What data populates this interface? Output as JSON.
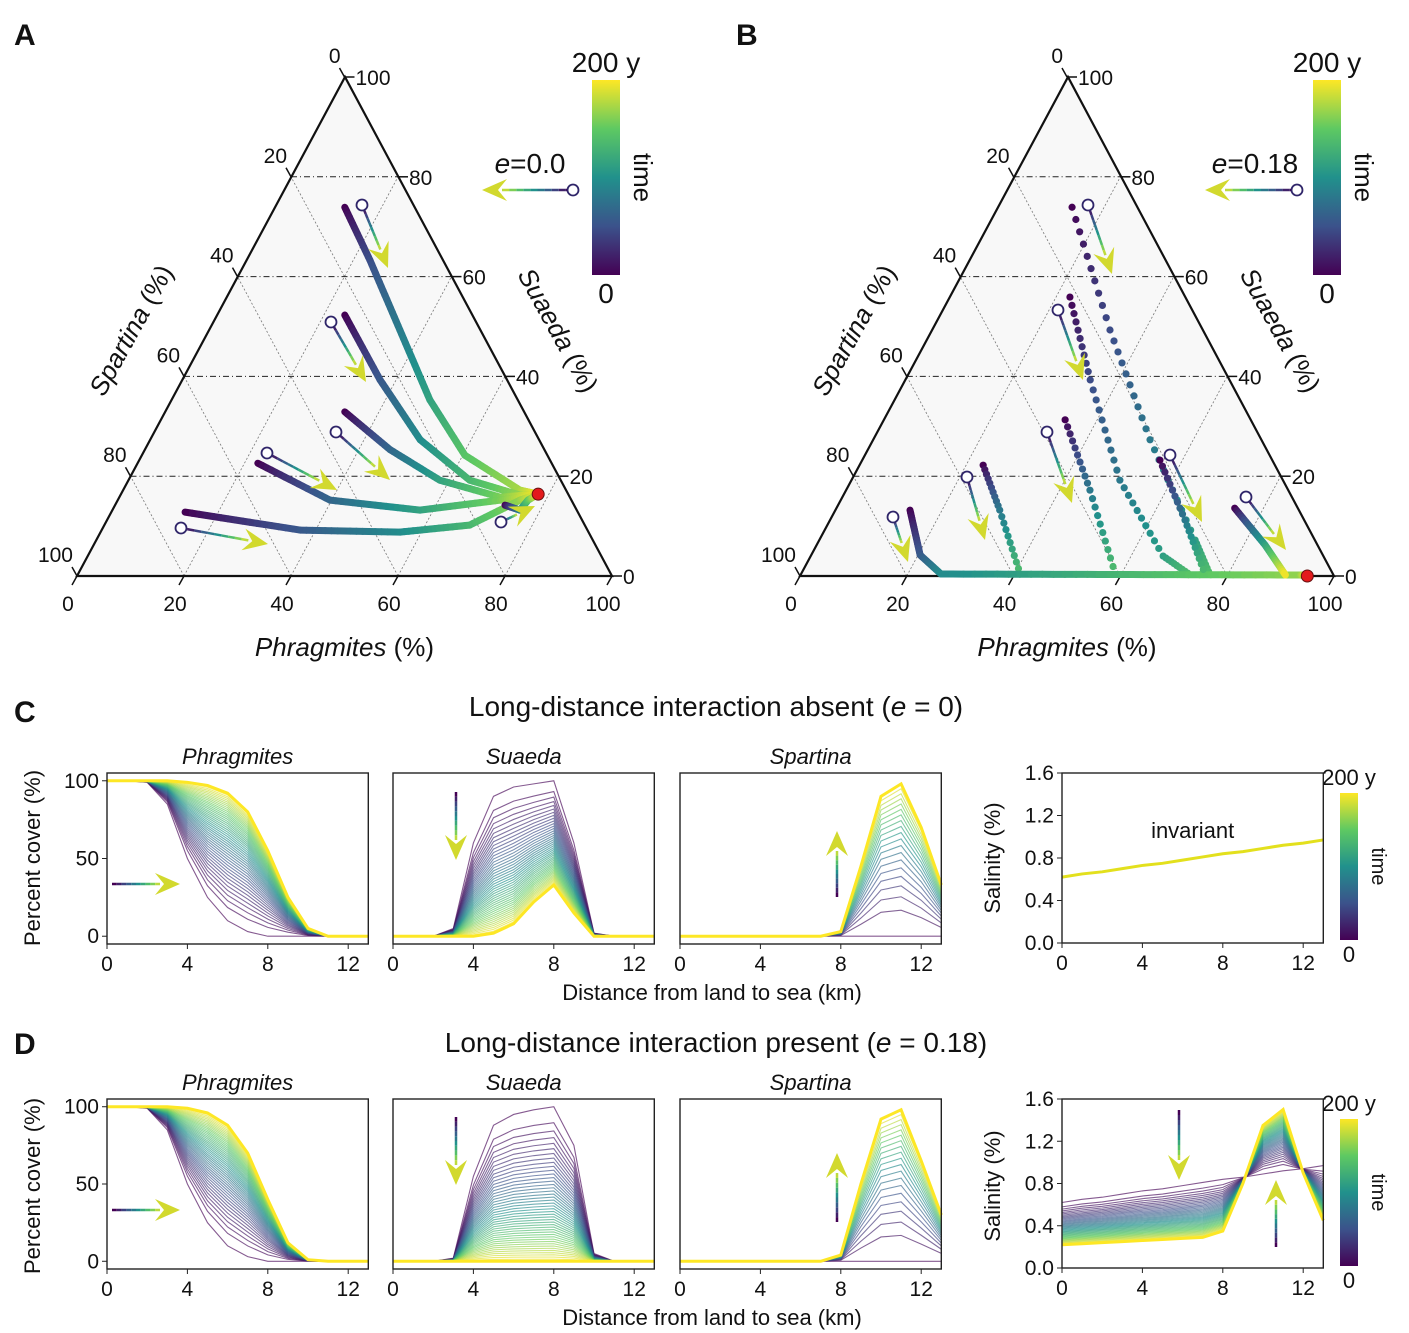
{
  "panel_labels": {
    "A": "A",
    "B": "B",
    "C": "C",
    "D": "D"
  },
  "rows": {
    "C": {
      "prefix": "Long-distance interaction absent (",
      "var": "e",
      "suffix": " = 0)"
    },
    "D": {
      "prefix": "Long-distance interaction present (",
      "var": "e",
      "suffix": " = 0.18)"
    }
  },
  "labels": {
    "percent_cover": "Percent cover (%)",
    "salinity": "Salinity (%)",
    "distance": "Distance from land to sea (km)",
    "invariant": "invariant",
    "unit": " (%)"
  },
  "colors": {
    "equilibrium": "#e31a1c",
    "arrow": "#d2d92e",
    "frame": "#111111"
  },
  "chart_data": [
    {
      "id": "A",
      "type": "scatter",
      "subtype": "ternary",
      "axes": {
        "bottom": "Phragmites",
        "right": "Suaeda",
        "left": "Spartina"
      },
      "ticks": [
        0,
        20,
        40,
        60,
        80,
        100
      ],
      "e_label": {
        "var": "e",
        "value": "=0.0"
      },
      "colorbar": {
        "top": "200 y",
        "bottom": "0",
        "label": "time"
      },
      "trajectories": [
        {
          "style": "solid",
          "points": [
            [
              13.1,
              73.9
            ],
            [
              23.1,
              63.3
            ],
            [
              35.7,
              49.3
            ],
            [
              48.3,
              35.3
            ],
            [
              60.4,
              24.2
            ],
            [
              74.2,
              17.2
            ],
            [
              78,
              16.4
            ]
          ]
        },
        {
          "style": "solid",
          "points": [
            [
              23.9,
              52.3
            ],
            [
              37,
              39.3
            ],
            [
              50.5,
              27.3
            ],
            [
              63.8,
              19.2
            ],
            [
              74.7,
              16.2
            ],
            [
              78,
              16.4
            ]
          ]
        },
        {
          "style": "solid",
          "points": [
            [
              33.6,
              32.9
            ],
            [
              45.9,
              25.3
            ],
            [
              58.2,
              19.2
            ],
            [
              71.2,
              15.8
            ],
            [
              78,
              16.4
            ]
          ]
        },
        {
          "style": "solid",
          "points": [
            [
              22.5,
              22.6
            ],
            [
              39.7,
              15.2
            ],
            [
              57.5,
              13.2
            ],
            [
              71.5,
              15.2
            ],
            [
              78,
              16.4
            ]
          ]
        },
        {
          "style": "solid",
          "points": [
            [
              13.8,
              12.8
            ],
            [
              37.1,
              9.2
            ],
            [
              56,
              8.8
            ],
            [
              68.3,
              10.2
            ],
            [
              75.2,
              15.2
            ],
            [
              78,
              16.4
            ]
          ]
        },
        {
          "style": "solid",
          "points": [
            [
              72.9,
              14.2
            ],
            [
              76.2,
              13.2
            ],
            [
              76.7,
              15.2
            ],
            [
              78,
              16.4
            ]
          ]
        }
      ],
      "equilibrium": [
        78,
        16.4
      ]
    },
    {
      "id": "B",
      "type": "scatter",
      "subtype": "ternary",
      "axes": {
        "bottom": "Phragmites",
        "right": "Suaeda",
        "left": "Spartina"
      },
      "ticks": [
        0,
        20,
        40,
        60,
        80,
        100
      ],
      "e_label": {
        "var": "e",
        "value": "=0.18"
      },
      "colorbar": {
        "top": "200 y",
        "bottom": "0",
        "label": "time"
      },
      "trajectories": [
        {
          "style": "dotted",
          "points": [
            [
              14,
              73.9
            ],
            [
              33.4,
              49.3
            ],
            [
              51.9,
              27.3
            ],
            [
              70.4,
              7.2
            ],
            [
              76.7,
              0.2
            ]
          ]
        },
        {
          "style": "dotted",
          "points": [
            [
              22.6,
              55.9
            ],
            [
              34.7,
              39.3
            ],
            [
              50.3,
              19.2
            ],
            [
              66,
              4
            ],
            [
              73,
              0.2
            ]
          ]
        },
        {
          "style": "dotted",
          "points": [
            [
              34,
              31.3
            ],
            [
              45.7,
              17.2
            ],
            [
              59,
              0.2
            ]
          ]
        },
        {
          "style": "dotted",
          "points": [
            [
              23.2,
              22.2
            ],
            [
              30.8,
              13.2
            ],
            [
              41.2,
              0.2
            ]
          ]
        },
        {
          "style": "solid",
          "points": [
            [
              14,
              13.2
            ],
            [
              20.4,
              4.2
            ],
            [
              26.2,
              0.4
            ],
            [
              60,
              0.3
            ],
            [
              93.6,
              0.2
            ],
            [
              95,
              0
            ]
          ]
        },
        {
          "style": "dotted",
          "points": [
            [
              55.8,
              23.2
            ],
            [
              66.5,
              11.2
            ],
            [
              75.8,
              0.2
            ]
          ]
        },
        {
          "style": "solid",
          "points": [
            [
              74.6,
              13.6
            ],
            [
              84,
              6.2
            ],
            [
              90.8,
              0.2
            ]
          ]
        }
      ],
      "equilibrium": [
        95,
        0
      ]
    },
    {
      "id": "C-phragmites",
      "row": "C",
      "type": "line",
      "title": "Phragmites",
      "xlim": [
        0,
        13
      ],
      "ylim": [
        -5,
        105
      ],
      "xticks": [
        0,
        4,
        8,
        12
      ],
      "yticks": [
        0,
        50,
        100
      ],
      "n_curves": 45,
      "x": [
        0,
        1,
        2,
        3,
        4,
        5,
        6,
        7,
        8,
        9,
        10,
        11,
        12,
        13
      ],
      "initial": [
        100,
        100,
        99,
        85,
        50,
        25,
        10,
        3,
        0,
        0,
        0,
        0,
        0,
        0
      ],
      "final": [
        100,
        100,
        100,
        100,
        99,
        97,
        92,
        80,
        55,
        25,
        5,
        0,
        0,
        0
      ]
    },
    {
      "id": "C-suaeda",
      "row": "C",
      "type": "line",
      "title": "Suaeda",
      "xlim": [
        0,
        13
      ],
      "ylim": [
        -5,
        105
      ],
      "xticks": [
        0,
        4,
        8,
        12
      ],
      "yticks": [],
      "n_curves": 45,
      "x": [
        0,
        1,
        2,
        3,
        4,
        5,
        6,
        7,
        8,
        9,
        10,
        11,
        12,
        13
      ],
      "initial": [
        0,
        0,
        0,
        5,
        60,
        90,
        96,
        98,
        100,
        60,
        2,
        0,
        0,
        0
      ],
      "final": [
        0,
        0,
        0,
        0,
        0,
        2,
        8,
        22,
        33,
        15,
        0,
        0,
        0,
        0
      ]
    },
    {
      "id": "C-spartina",
      "row": "C",
      "type": "line",
      "title": "Spartina",
      "xlim": [
        0,
        13
      ],
      "ylim": [
        -5,
        105
      ],
      "xticks": [
        0,
        4,
        8,
        12
      ],
      "yticks": [],
      "n_curves": 20,
      "x": [
        0,
        1,
        2,
        3,
        4,
        5,
        6,
        7,
        8,
        9,
        10,
        11,
        12,
        13
      ],
      "initial": [
        0,
        0,
        0,
        0,
        0,
        0,
        0,
        0,
        0,
        0,
        0,
        0,
        0,
        0
      ],
      "final": [
        0,
        0,
        0,
        0,
        0,
        0,
        0,
        0,
        3,
        45,
        90,
        98,
        70,
        33
      ]
    },
    {
      "id": "C-salinity",
      "row": "C",
      "type": "line",
      "title": "",
      "xlim": [
        0,
        13
      ],
      "ylim": [
        0,
        1.6
      ],
      "xticks": [
        0,
        4,
        8,
        12
      ],
      "yticks": [
        0.0,
        0.4,
        0.8,
        1.2,
        1.6
      ],
      "ytick_labels": [
        "0.0",
        "0.4",
        "0.8",
        "1.2",
        "1.6"
      ],
      "n_curves": 1,
      "x": [
        0,
        1,
        2,
        3,
        4,
        5,
        6,
        7,
        8,
        9,
        10,
        11,
        12,
        13
      ],
      "initial": [
        0.62,
        0.65,
        0.67,
        0.7,
        0.73,
        0.75,
        0.78,
        0.81,
        0.84,
        0.86,
        0.89,
        0.92,
        0.94,
        0.97
      ],
      "final": [
        0.62,
        0.65,
        0.67,
        0.7,
        0.73,
        0.75,
        0.78,
        0.81,
        0.84,
        0.86,
        0.89,
        0.92,
        0.94,
        0.97
      ],
      "annotation": "invariant",
      "colorbar": {
        "top": "200 y",
        "bottom": "0",
        "label": "time"
      }
    },
    {
      "id": "D-phragmites",
      "row": "D",
      "type": "line",
      "title": "Phragmites",
      "xlim": [
        0,
        13
      ],
      "ylim": [
        -5,
        105
      ],
      "xticks": [
        0,
        4,
        8,
        12
      ],
      "yticks": [
        0,
        50,
        100
      ],
      "n_curves": 45,
      "x": [
        0,
        1,
        2,
        3,
        4,
        5,
        6,
        7,
        8,
        9,
        10,
        11,
        12,
        13
      ],
      "initial": [
        100,
        100,
        99,
        85,
        50,
        25,
        10,
        3,
        0,
        0,
        0,
        0,
        0,
        0
      ],
      "final": [
        100,
        100,
        100,
        100,
        99,
        96,
        88,
        70,
        40,
        12,
        1,
        0,
        0,
        0
      ]
    },
    {
      "id": "D-suaeda",
      "row": "D",
      "type": "line",
      "title": "Suaeda",
      "xlim": [
        0,
        13
      ],
      "ylim": [
        -5,
        105
      ],
      "xticks": [
        0,
        4,
        8,
        12
      ],
      "yticks": [],
      "n_curves": 45,
      "x": [
        0,
        1,
        2,
        3,
        4,
        5,
        6,
        7,
        8,
        9,
        10,
        11,
        12,
        13
      ],
      "initial": [
        0,
        0,
        0,
        2,
        55,
        88,
        95,
        98,
        100,
        75,
        5,
        0,
        0,
        0
      ],
      "final": [
        0,
        0,
        0,
        0,
        0,
        0,
        0,
        0,
        0,
        0,
        0,
        0,
        0,
        0
      ]
    },
    {
      "id": "D-spartina",
      "row": "D",
      "type": "line",
      "title": "Spartina",
      "xlim": [
        0,
        13
      ],
      "ylim": [
        -5,
        105
      ],
      "xticks": [
        0,
        4,
        8,
        12
      ],
      "yticks": [],
      "n_curves": 20,
      "x": [
        0,
        1,
        2,
        3,
        4,
        5,
        6,
        7,
        8,
        9,
        10,
        11,
        12,
        13
      ],
      "initial": [
        0,
        0,
        0,
        0,
        0,
        0,
        0,
        0,
        0,
        0,
        0,
        0,
        0,
        0
      ],
      "final": [
        0,
        0,
        0,
        0,
        0,
        0,
        0,
        0,
        4,
        50,
        92,
        98,
        65,
        30
      ]
    },
    {
      "id": "D-salinity",
      "row": "D",
      "type": "line",
      "title": "",
      "xlim": [
        0,
        13
      ],
      "ylim": [
        0,
        1.6
      ],
      "xticks": [
        0,
        4,
        8,
        12
      ],
      "yticks": [
        0.0,
        0.4,
        0.8,
        1.2,
        1.6
      ],
      "ytick_labels": [
        "0.0",
        "0.4",
        "0.8",
        "1.2",
        "1.6"
      ],
      "n_curves": 45,
      "x": [
        0,
        1,
        2,
        3,
        4,
        5,
        6,
        7,
        8,
        9,
        10,
        11,
        12,
        13
      ],
      "initial": [
        0.62,
        0.65,
        0.67,
        0.7,
        0.73,
        0.75,
        0.78,
        0.81,
        0.84,
        0.86,
        0.89,
        0.92,
        0.94,
        0.97
      ],
      "final": [
        0.22,
        0.23,
        0.24,
        0.25,
        0.26,
        0.27,
        0.28,
        0.29,
        0.35,
        0.8,
        1.35,
        1.5,
        0.9,
        0.45
      ],
      "colorbar": {
        "top": "200 y",
        "bottom": "0",
        "label": "time"
      }
    }
  ]
}
